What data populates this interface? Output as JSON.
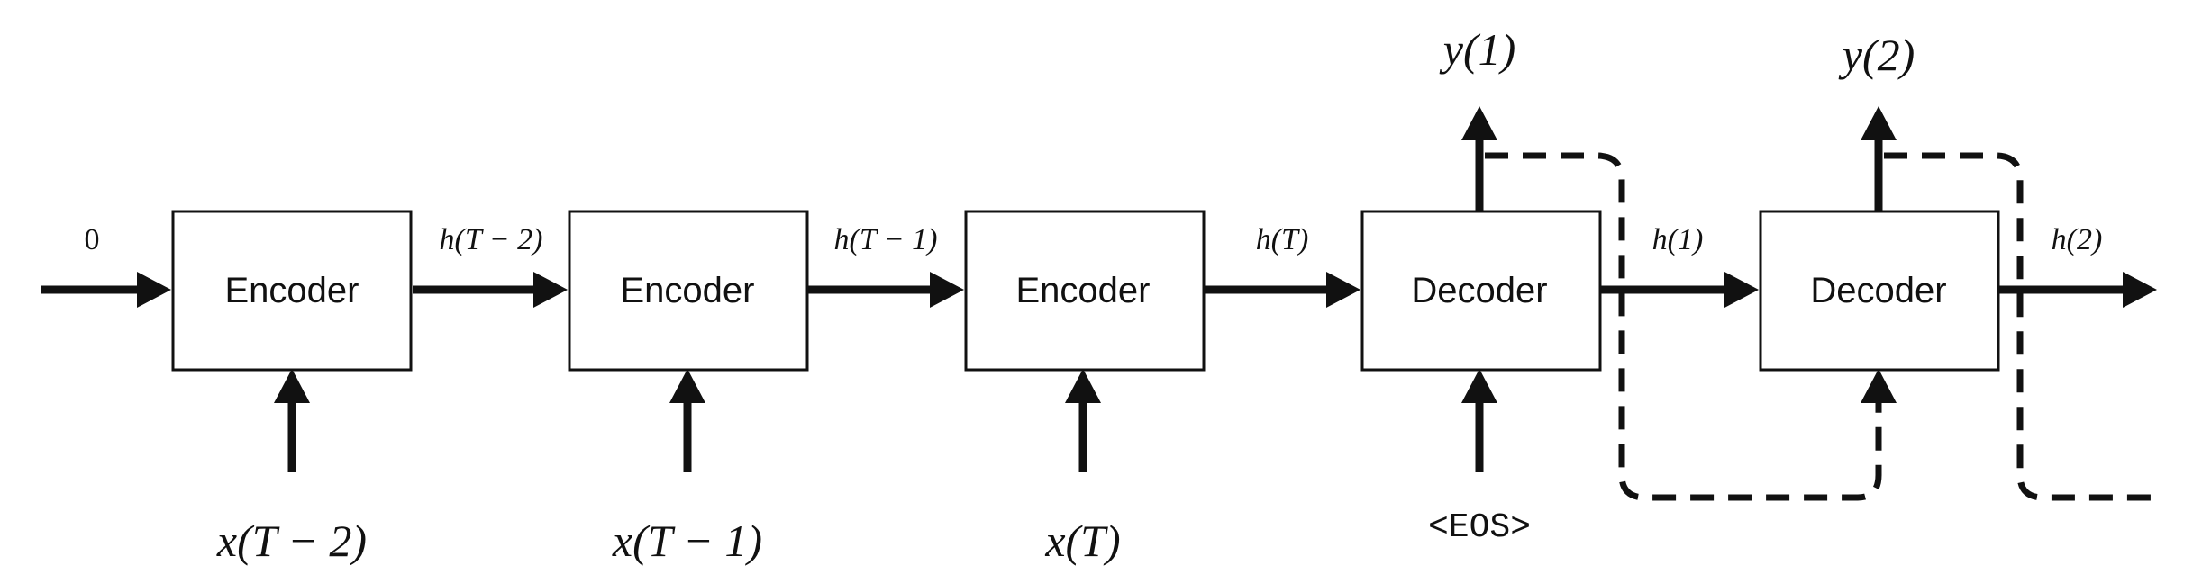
{
  "diagram": {
    "initial_state": "0",
    "encoders": [
      {
        "label": "Encoder",
        "input": "x(T − 2)",
        "output_state": "h(T − 2)"
      },
      {
        "label": "Encoder",
        "input": "x(T − 1)",
        "output_state": "h(T − 1)"
      },
      {
        "label": "Encoder",
        "input": "x(T)",
        "output_state": "h(T)"
      }
    ],
    "decoders": [
      {
        "label": "Decoder",
        "input": "<EOS>",
        "output": "y(1)",
        "output_state": "h(1)"
      },
      {
        "label": "Decoder",
        "output": "y(2)",
        "output_state": "h(2)"
      }
    ]
  }
}
